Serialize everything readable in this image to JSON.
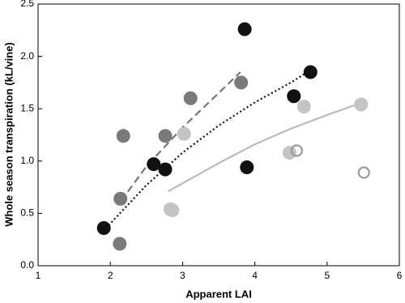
{
  "chart_data": {
    "type": "scatter",
    "xlabel": "Apparent LAI",
    "ylabel": "Whole season transpiration (kL/vine)",
    "xlim": [
      1,
      6
    ],
    "ylim": [
      0,
      2.5
    ],
    "xticks": [
      1,
      2,
      3,
      4,
      5,
      6
    ],
    "yticks": [
      {
        "value": 0,
        "label": "0.0"
      },
      0.5,
      {
        "value": 1,
        "label": "1.0"
      },
      1.5,
      {
        "value": 2,
        "label": "2.0"
      },
      2.5
    ],
    "series": [
      {
        "color": "#111111",
        "marker": "filled",
        "x": [
          1.91,
          2.6,
          2.76,
          3.86,
          3.89,
          4.54,
          4.77
        ],
        "values": [
          0.36,
          0.97,
          0.92,
          2.26,
          0.94,
          1.62,
          1.85
        ]
      },
      {
        "color": "#7a7a7a",
        "marker": "filled",
        "x": [
          2.14,
          2.18,
          2.13,
          2.76,
          3.11,
          3.81
        ],
        "values": [
          0.64,
          1.24,
          0.21,
          1.24,
          1.6,
          1.75
        ]
      },
      {
        "color": "#c4c4c4",
        "marker": "filled",
        "x": [
          2.83,
          3.02,
          2.86,
          4.48,
          4.68,
          5.47
        ],
        "values": [
          0.54,
          1.26,
          0.53,
          1.08,
          1.52,
          1.54
        ]
      },
      {
        "color": "#9a9a9a",
        "marker": "open",
        "x": [
          4.58,
          5.51
        ],
        "values": [
          1.1,
          0.89
        ]
      }
    ],
    "curves": [
      {
        "color": "#777777",
        "style": "dashed",
        "x": [
          2.15,
          2.5,
          3.0,
          3.5,
          3.8
        ],
        "values": [
          0.62,
          0.95,
          1.32,
          1.65,
          1.85
        ]
      },
      {
        "color": "#111111",
        "style": "dotted",
        "x": [
          1.9,
          2.5,
          3.0,
          3.5,
          4.0,
          4.5,
          4.75
        ],
        "values": [
          0.33,
          0.77,
          1.08,
          1.34,
          1.56,
          1.75,
          1.86
        ]
      },
      {
        "color": "#bbbbbb",
        "style": "solid",
        "x": [
          2.8,
          3.5,
          4.0,
          4.5,
          5.0,
          5.45
        ],
        "values": [
          0.71,
          0.98,
          1.16,
          1.31,
          1.44,
          1.55
        ]
      }
    ]
  }
}
